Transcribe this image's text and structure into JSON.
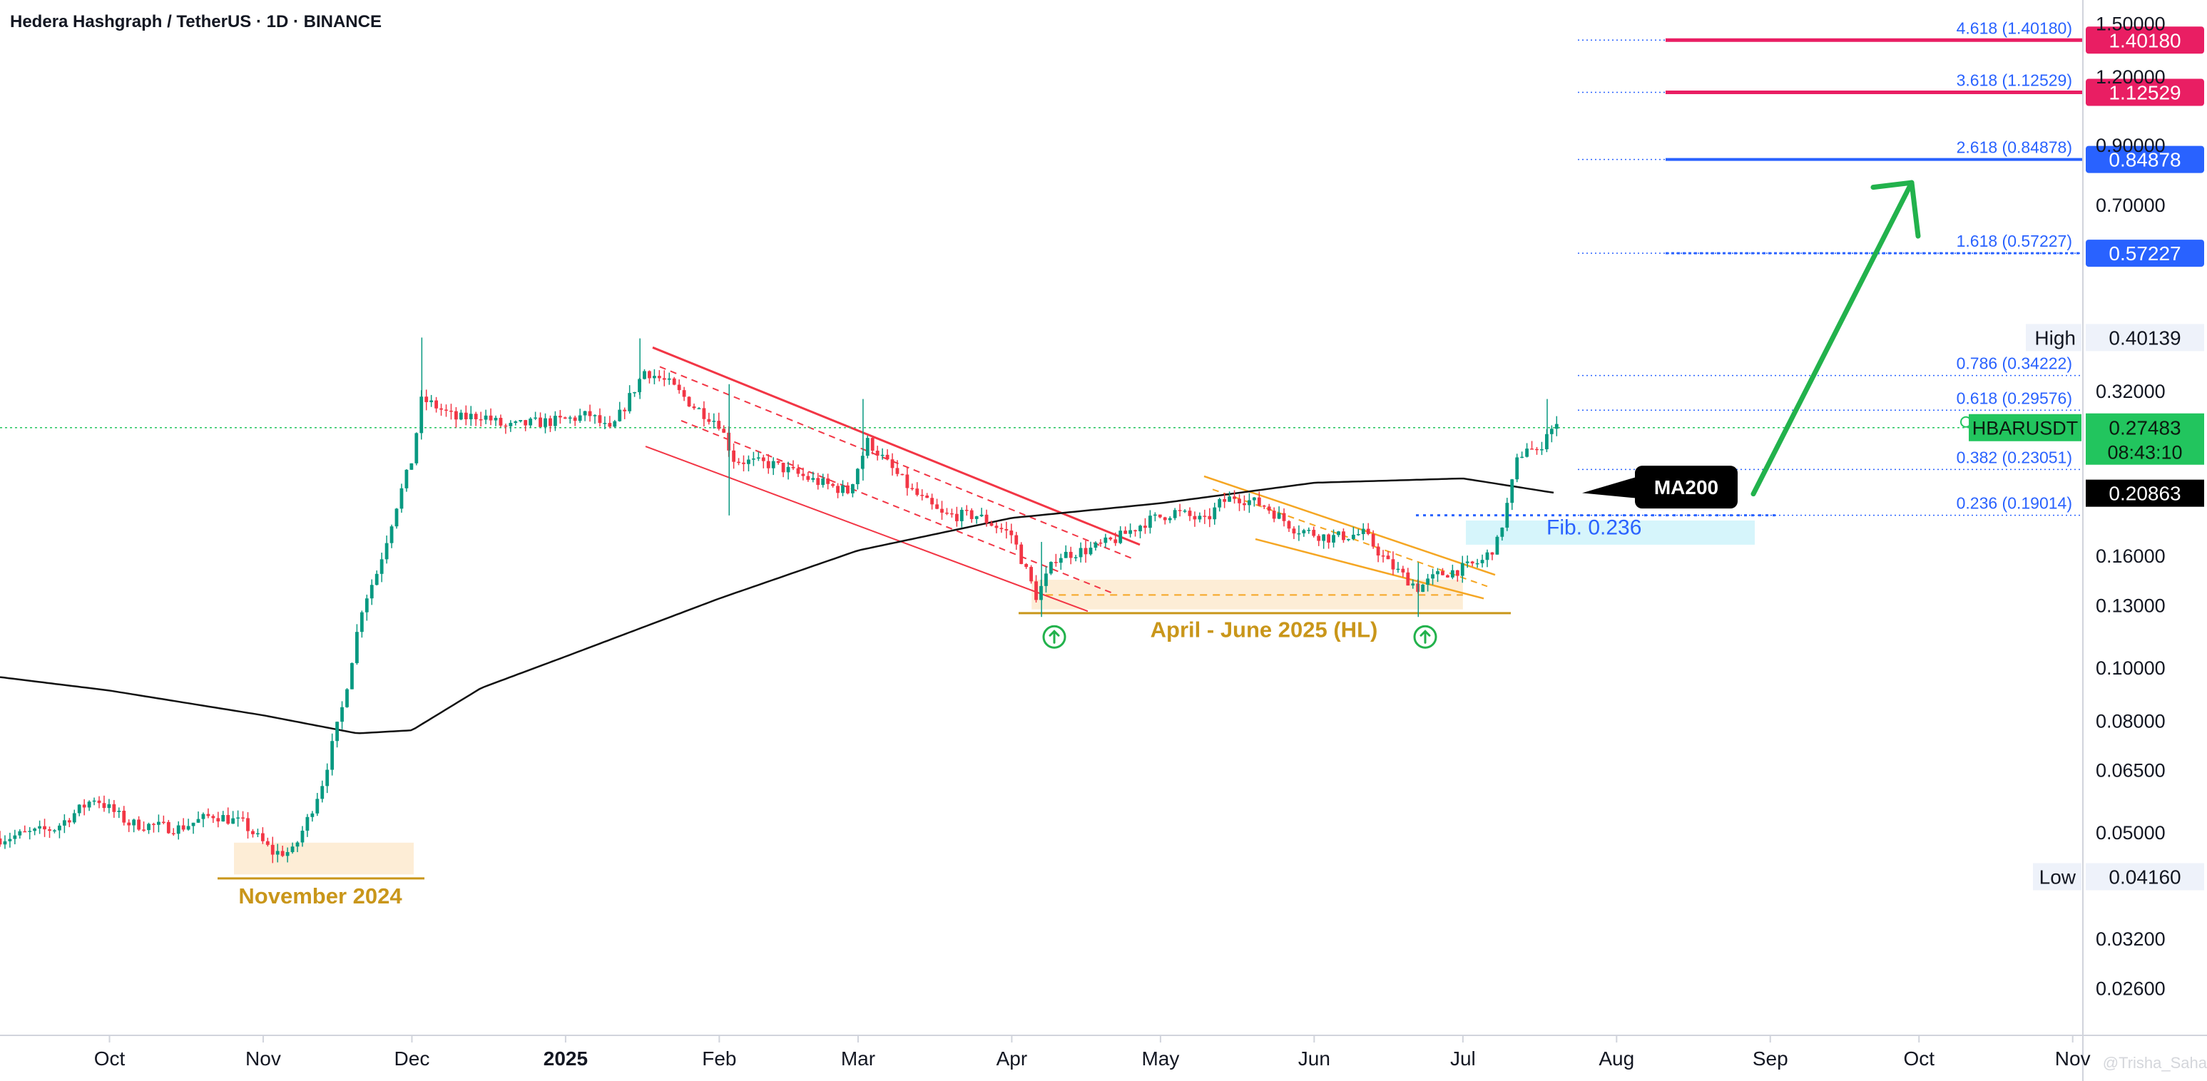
{
  "header": {
    "title": "Hedera Hashgraph / TetherUS · 1D · BINANCE"
  },
  "colors": {
    "candle_up": "#089981",
    "candle_down": "#f23645",
    "ma200": "#111111",
    "fib_line": "#2962ff",
    "fib_ext_red": "#e91e63",
    "channel_red": "#f23645",
    "wedge_orange": "#f5a623",
    "zone_fill": "#fde9cc",
    "zone_label": "#c9961a",
    "arrow_green": "#22b24c",
    "current_price_bg": "#22c55e",
    "fib_zone_fill": "#d6f5fb"
  },
  "chart_data": {
    "type": "candlestick",
    "title": "Hedera Hashgraph / TetherUS · 1D · BINANCE",
    "symbol": "HBARUSDT",
    "scale": "log",
    "ylim": [
      0.0235,
      1.62
    ],
    "grid": false,
    "x_tick_labels": [
      "Oct",
      "Nov",
      "Dec",
      "2025",
      "Feb",
      "Mar",
      "Apr",
      "May",
      "Jun",
      "Jul",
      "Aug",
      "Sep",
      "Oct",
      "Nov"
    ],
    "x_tick_dates": [
      "2024-10-01",
      "2024-11-01",
      "2024-12-01",
      "2025-01-01",
      "2025-02-01",
      "2025-03-01",
      "2025-04-01",
      "2025-05-01",
      "2025-06-01",
      "2025-07-01",
      "2025-08-01",
      "2025-09-01",
      "2025-10-01",
      "2025-11-01"
    ],
    "y_ticks": [
      1.5,
      1.2,
      0.9,
      0.7,
      0.32,
      0.16,
      0.13,
      0.1,
      0.08,
      0.065,
      0.05,
      0.032,
      0.026
    ],
    "y_tick_labels": [
      "1.50000",
      "1.20000",
      "0.90000",
      "0.70000",
      "0.32000",
      "0.16000",
      "0.13000",
      "0.10000",
      "0.08000",
      "0.06500",
      "0.05000",
      "0.03200",
      "0.02600"
    ],
    "price_path": [
      [
        "2024-09-02",
        0.048
      ],
      [
        "2024-09-10",
        0.049
      ],
      [
        "2024-09-20",
        0.051
      ],
      [
        "2024-09-28",
        0.058
      ],
      [
        "2024-10-05",
        0.052
      ],
      [
        "2024-10-15",
        0.051
      ],
      [
        "2024-10-22",
        0.054
      ],
      [
        "2024-10-28",
        0.052
      ],
      [
        "2024-11-03",
        0.046
      ],
      [
        "2024-11-07",
        0.0462
      ],
      [
        "2024-11-10",
        0.053
      ],
      [
        "2024-11-13",
        0.062
      ],
      [
        "2024-11-17",
        0.085
      ],
      [
        "2024-11-21",
        0.13
      ],
      [
        "2024-11-24",
        0.15
      ],
      [
        "2024-11-28",
        0.2
      ],
      [
        "2024-12-01",
        0.24
      ],
      [
        "2024-12-03",
        0.31
      ],
      [
        "2024-12-06",
        0.3
      ],
      [
        "2024-12-10",
        0.285
      ],
      [
        "2024-12-15",
        0.29
      ],
      [
        "2024-12-20",
        0.275
      ],
      [
        "2024-12-25",
        0.28
      ],
      [
        "2024-12-31",
        0.283
      ],
      [
        "2025-01-06",
        0.29
      ],
      [
        "2025-01-10",
        0.27
      ],
      [
        "2025-01-17",
        0.35
      ],
      [
        "2025-01-22",
        0.33
      ],
      [
        "2025-01-27",
        0.3
      ],
      [
        "2025-02-01",
        0.28
      ],
      [
        "2025-02-04",
        0.24
      ],
      [
        "2025-02-12",
        0.235
      ],
      [
        "2025-02-20",
        0.22
      ],
      [
        "2025-02-27",
        0.21
      ],
      [
        "2025-03-03",
        0.26
      ],
      [
        "2025-03-08",
        0.23
      ],
      [
        "2025-03-12",
        0.21
      ],
      [
        "2025-03-18",
        0.19
      ],
      [
        "2025-03-25",
        0.19
      ],
      [
        "2025-04-01",
        0.175
      ],
      [
        "2025-04-06",
        0.135
      ],
      [
        "2025-04-10",
        0.16
      ],
      [
        "2025-04-17",
        0.165
      ],
      [
        "2025-04-22",
        0.172
      ],
      [
        "2025-04-28",
        0.185
      ],
      [
        "2025-05-04",
        0.193
      ],
      [
        "2025-05-10",
        0.185
      ],
      [
        "2025-05-13",
        0.2
      ],
      [
        "2025-05-16",
        0.206
      ],
      [
        "2025-05-22",
        0.198
      ],
      [
        "2025-05-28",
        0.18
      ],
      [
        "2025-06-04",
        0.173
      ],
      [
        "2025-06-11",
        0.176
      ],
      [
        "2025-06-16",
        0.155
      ],
      [
        "2025-06-22",
        0.14
      ],
      [
        "2025-06-26",
        0.148
      ],
      [
        "2025-07-01",
        0.152
      ],
      [
        "2025-07-05",
        0.157
      ],
      [
        "2025-07-08",
        0.17
      ],
      [
        "2025-07-10",
        0.2
      ],
      [
        "2025-07-12",
        0.24
      ],
      [
        "2025-07-14",
        0.255
      ],
      [
        "2025-07-16",
        0.245
      ],
      [
        "2025-07-18",
        0.272
      ],
      [
        "2025-07-20",
        0.2748
      ]
    ],
    "ma200_path": [
      [
        "2024-09-02",
        0.098
      ],
      [
        "2024-10-01",
        0.091
      ],
      [
        "2024-11-01",
        0.082
      ],
      [
        "2024-11-20",
        0.076
      ],
      [
        "2024-12-01",
        0.077
      ],
      [
        "2024-12-15",
        0.092
      ],
      [
        "2025-01-01",
        0.105
      ],
      [
        "2025-02-01",
        0.134
      ],
      [
        "2025-03-01",
        0.164
      ],
      [
        "2025-04-01",
        0.188
      ],
      [
        "2025-05-01",
        0.2
      ],
      [
        "2025-06-01",
        0.218
      ],
      [
        "2025-07-01",
        0.222
      ],
      [
        "2025-07-20",
        0.2086
      ]
    ],
    "fib_levels": [
      {
        "label": "4.618 (1.40180)",
        "value": 1.4018,
        "tag": "1.40180",
        "style": "ext-red"
      },
      {
        "label": "3.618 (1.12529)",
        "value": 1.12529,
        "tag": "1.12529",
        "style": "ext-red"
      },
      {
        "label": "2.618 (0.84878)",
        "value": 0.84878,
        "tag": "0.84878",
        "style": "ext-blue"
      },
      {
        "label": "1.618 (0.57227)",
        "value": 0.57227,
        "tag": "0.57227",
        "style": "ext-blue-dotted"
      },
      {
        "label": "0.786 (0.34222)",
        "value": 0.34222,
        "tag": "",
        "style": "retr"
      },
      {
        "label": "0.618 (0.29576)",
        "value": 0.29576,
        "tag": "",
        "style": "retr"
      },
      {
        "label": "0.382 (0.23051)",
        "value": 0.23051,
        "tag": "",
        "style": "retr"
      },
      {
        "label": "0.236 (0.19014)",
        "value": 0.19014,
        "tag": "",
        "style": "retr"
      }
    ],
    "price_tags": {
      "high": {
        "label": "High",
        "value": "0.40139",
        "price": 0.40139
      },
      "current": {
        "symbol": "HBARUSDT",
        "value": "0.27483",
        "countdown": "08:43:10",
        "price": 0.27483
      },
      "ma200": {
        "value": "0.20863",
        "price": 0.20863
      },
      "low": {
        "label": "Low",
        "value": "0.04160",
        "price": 0.0416
      }
    },
    "annotations": {
      "ma200_callout": "MA200",
      "fib_236_box": "Fib. 0.236",
      "zone_label": "April - June 2025 (HL)",
      "nov_label": "November 2024",
      "watermark": "@Trisha_Saha"
    }
  }
}
